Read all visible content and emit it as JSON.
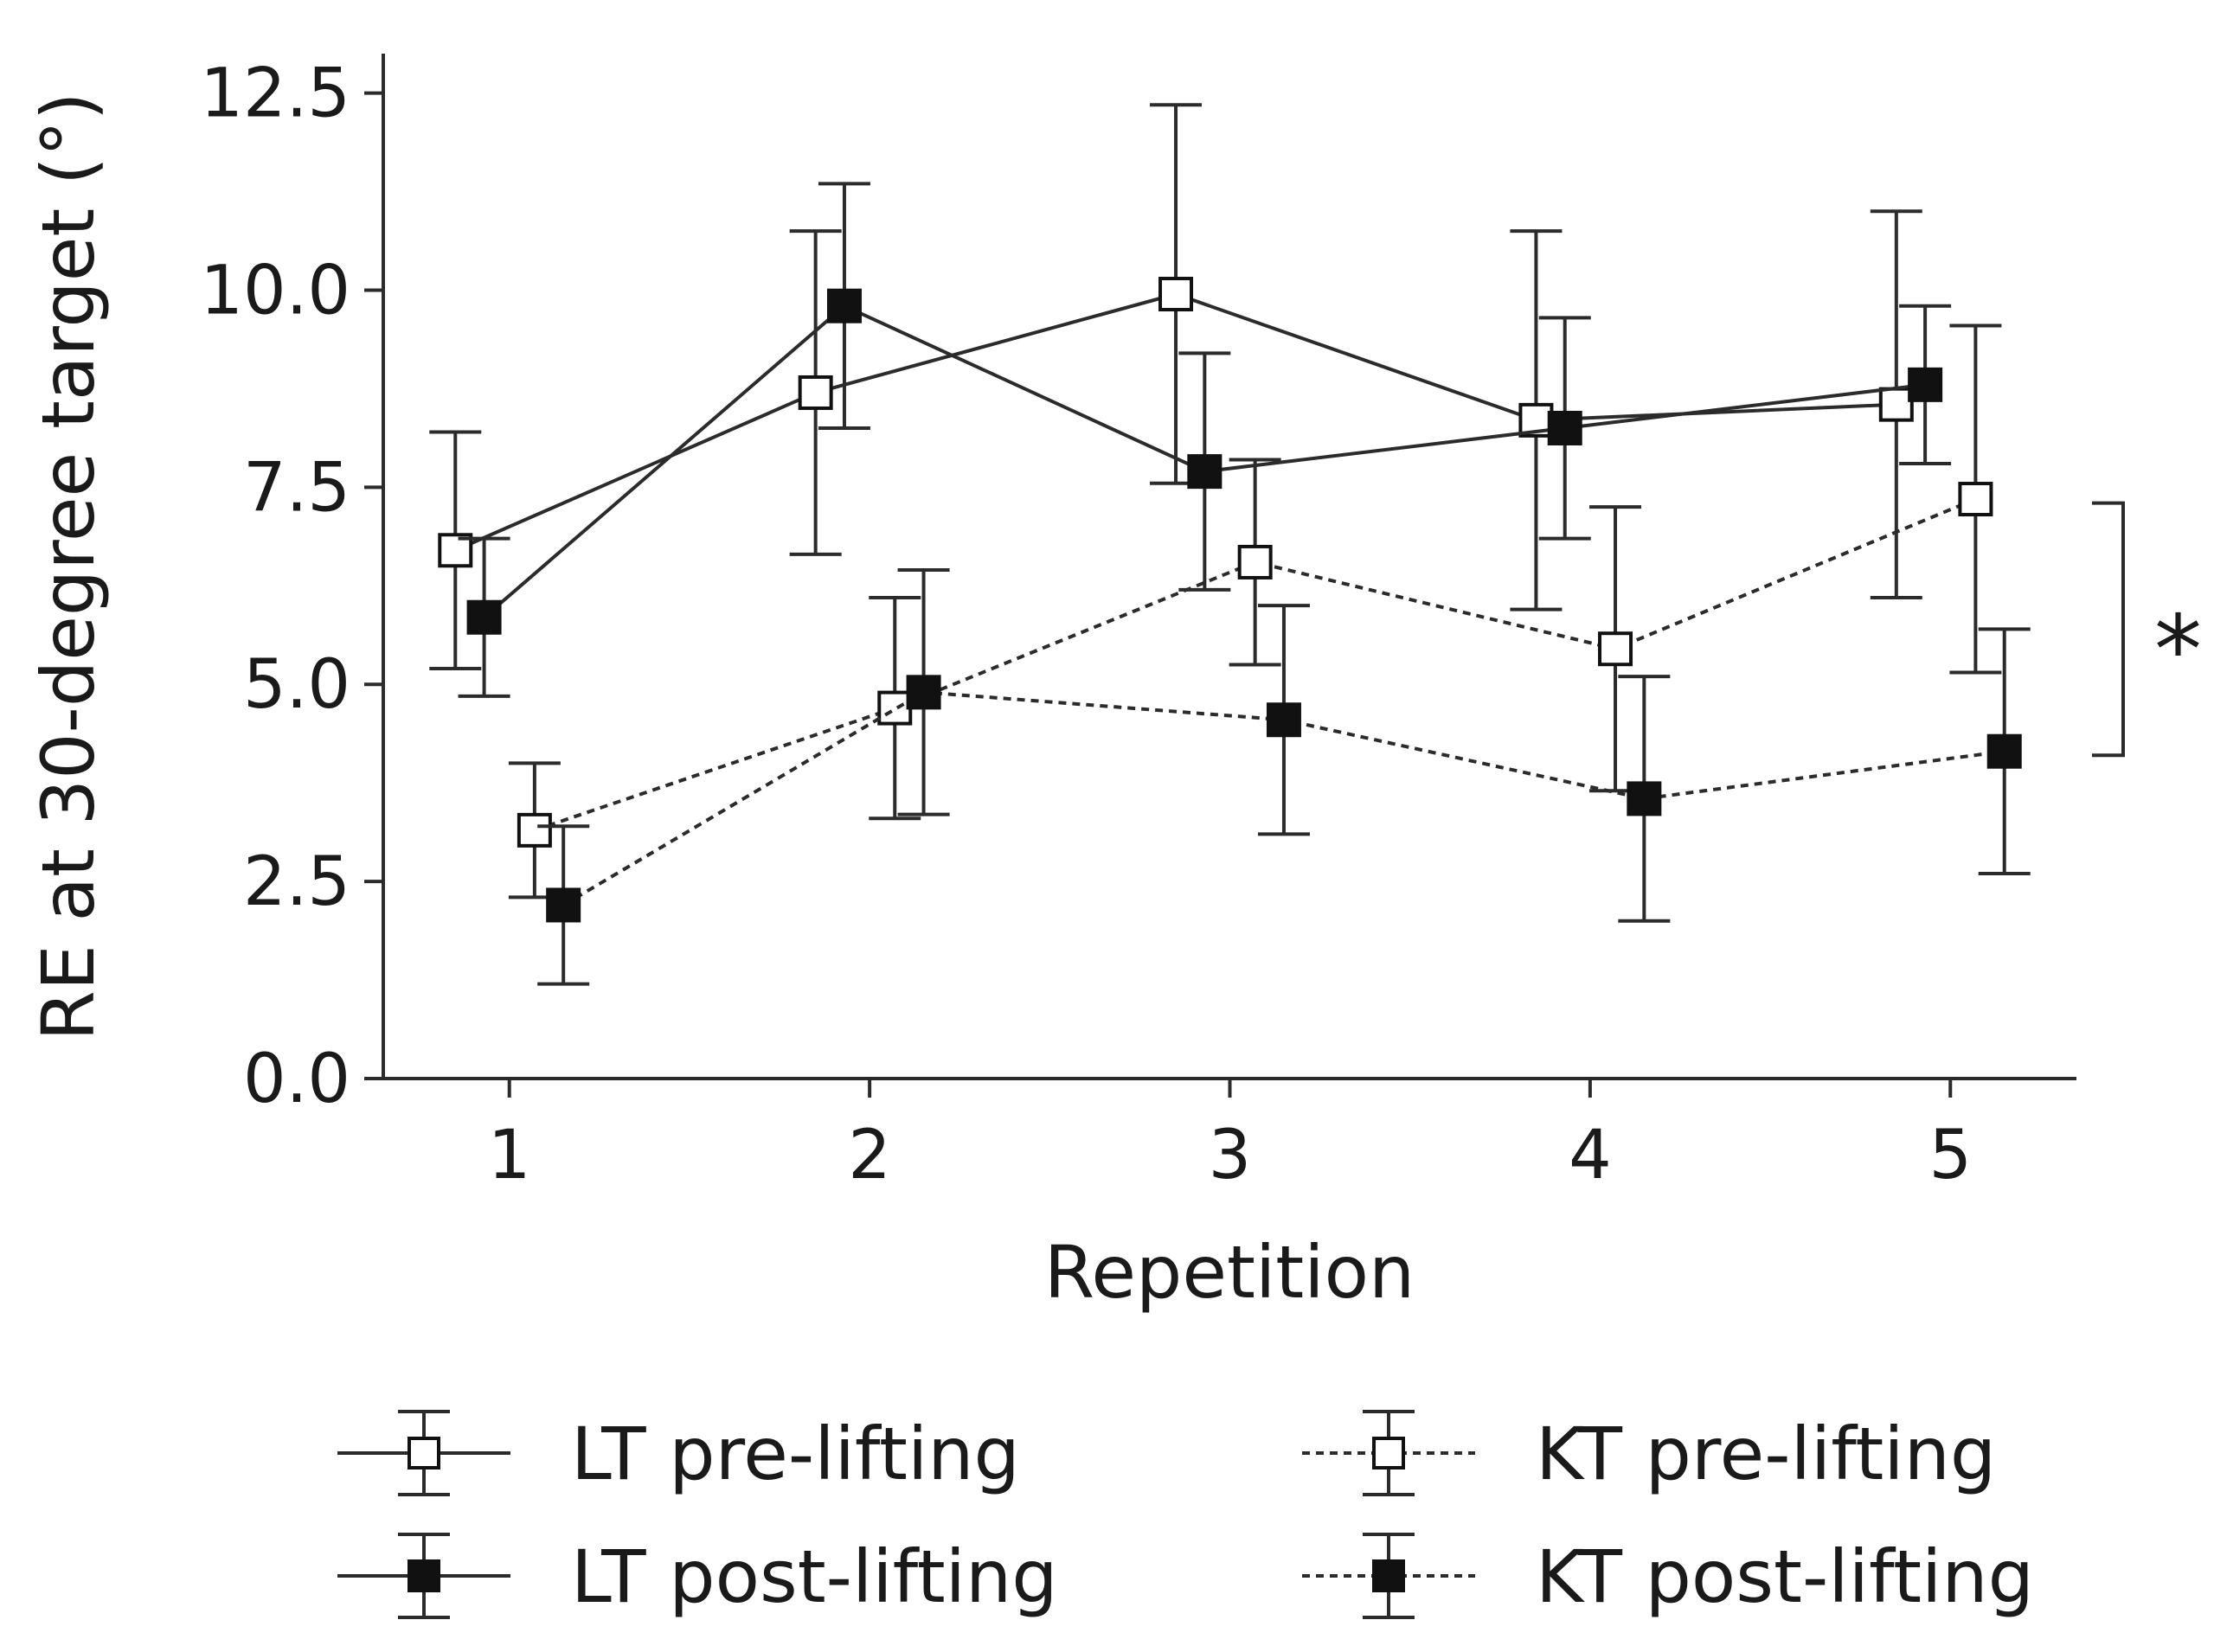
{
  "chart_data": {
    "type": "line",
    "title": "",
    "xlabel": "Repetition",
    "ylabel": "RE at 30-degree target (°)",
    "x": [
      1,
      2,
      3,
      4,
      5
    ],
    "xlim": [
      0.65,
      5.35
    ],
    "ylim": [
      0.0,
      13.0
    ],
    "x_ticks": [
      "1",
      "2",
      "3",
      "4",
      "5"
    ],
    "y_ticks": [
      "0.0",
      "2.5",
      "5.0",
      "7.5",
      "10.0",
      "12.5"
    ],
    "grid": false,
    "legend_position": "bottom",
    "series": [
      {
        "name": "LT pre-lifting",
        "x_offset": -0.15,
        "line_style": "solid",
        "marker": "open-square",
        "values": [
          6.7,
          8.7,
          9.95,
          8.35,
          8.55
        ],
        "error": [
          1.5,
          2.05,
          2.4,
          2.4,
          2.45
        ]
      },
      {
        "name": "LT post-lifting",
        "x_offset": -0.07,
        "line_style": "solid",
        "marker": "filled-square",
        "values": [
          5.85,
          9.8,
          7.7,
          8.25,
          8.8
        ],
        "error": [
          1.0,
          1.55,
          1.5,
          1.4,
          1.0
        ]
      },
      {
        "name": "KT pre-lifting",
        "x_offset": 0.07,
        "line_style": "dotted",
        "marker": "open-square",
        "values": [
          3.15,
          4.7,
          6.55,
          5.45,
          7.35
        ],
        "error": [
          0.85,
          1.4,
          1.3,
          1.8,
          2.2
        ]
      },
      {
        "name": "KT post-lifting",
        "x_offset": 0.15,
        "line_style": "dotted",
        "marker": "filled-square",
        "values": [
          2.2,
          4.9,
          4.55,
          3.55,
          4.15
        ],
        "error": [
          1.0,
          1.55,
          1.45,
          1.55,
          1.55
        ]
      }
    ],
    "annotations": [
      {
        "text": "*",
        "bracket_from": 4.1,
        "bracket_to": 7.3
      }
    ],
    "colors": {
      "line": "#2b2b2b",
      "text": "#1a1a1a",
      "background": "#ffffff"
    }
  }
}
